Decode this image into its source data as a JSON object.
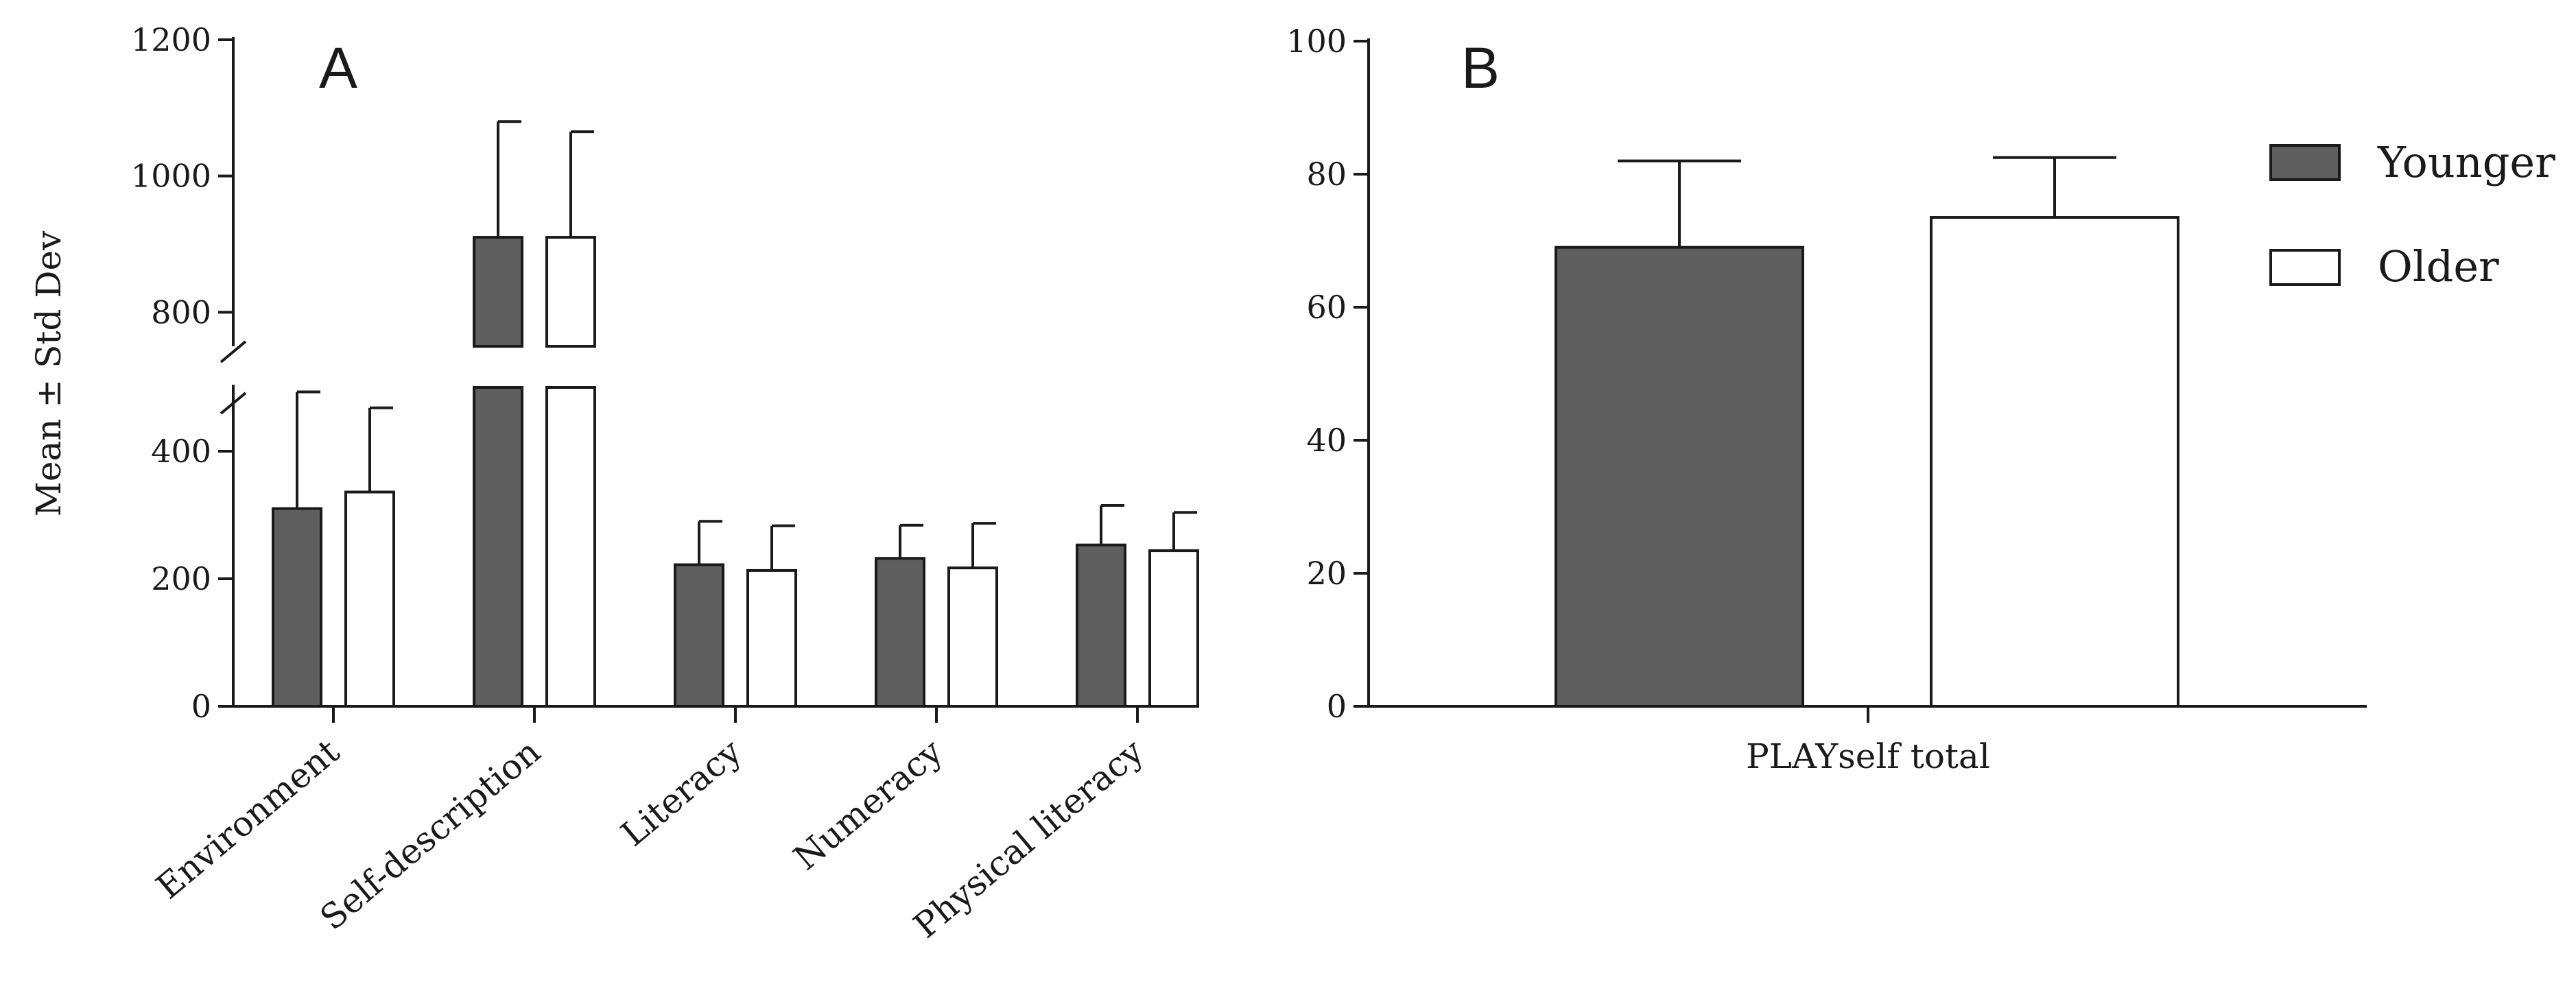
{
  "colors": {
    "younger": "#5f5f5f",
    "older": "#ffffff",
    "stroke": "#1a1a1a",
    "background": "#ffffff"
  },
  "legend": {
    "younger": "Younger",
    "older": "Older"
  },
  "chart_data": [
    {
      "panel": "A",
      "type": "bar",
      "title": "A",
      "xlabel": "",
      "ylabel": "Mean ± Std Dev",
      "categories": [
        "Environment",
        "Self-description",
        "Literacy",
        "Numeracy",
        "Physical literacy"
      ],
      "series": [
        {
          "name": "Younger",
          "values": [
            310,
            910,
            222,
            232,
            253
          ],
          "errors": [
            183,
            170,
            68,
            52,
            62
          ]
        },
        {
          "name": "Older",
          "values": [
            336,
            910,
            213,
            217,
            244
          ],
          "errors": [
            132,
            155,
            70,
            70,
            60
          ]
        }
      ],
      "axis_break": {
        "from": 500,
        "to": 750
      },
      "ylim": [
        0,
        1200
      ],
      "yticks": [
        "0",
        "200",
        "400",
        "800",
        "1000",
        "1200"
      ],
      "legend_position": "none",
      "grid": false
    },
    {
      "panel": "B",
      "type": "bar",
      "title": "B",
      "xlabel": "",
      "ylabel": "",
      "categories": [
        "PLAYself total"
      ],
      "series": [
        {
          "name": "Younger",
          "values": [
            69
          ],
          "errors": [
            13
          ]
        },
        {
          "name": "Older",
          "values": [
            73.5
          ],
          "errors": [
            9
          ]
        }
      ],
      "ylim": [
        0,
        100
      ],
      "yticks": [
        "0",
        "20",
        "40",
        "60",
        "80",
        "100"
      ],
      "legend_position": "top-right",
      "grid": false
    }
  ]
}
